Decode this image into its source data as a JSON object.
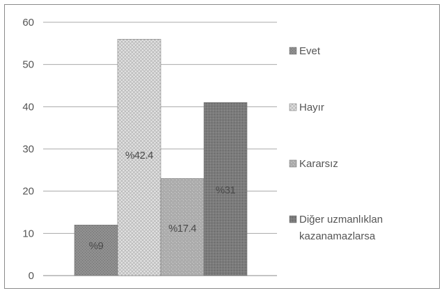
{
  "chart_data": {
    "type": "bar",
    "categories": [
      "Evet",
      "Hayır",
      "Kararsız",
      "Diğer uzmanlıklan kazanamazlarsa"
    ],
    "values": [
      12,
      56,
      23,
      41
    ],
    "data_labels": [
      "%9",
      "%42.4",
      "%17.4",
      "%31"
    ],
    "ylim": [
      0,
      60
    ],
    "yticks": [
      0,
      10,
      20,
      30,
      40,
      50,
      60
    ],
    "grid": true,
    "legend_position": "right",
    "series_colors": [
      "#8f8f8f",
      "#dcdcdc",
      "#a9a9a9",
      "#7b7b7b"
    ],
    "legend": [
      {
        "label": "Evet",
        "color": "#8f8f8f"
      },
      {
        "label": "Hayır",
        "color": "#dcdcdc"
      },
      {
        "label": "Kararsız",
        "color": "#a9a9a9"
      },
      {
        "label_lines": [
          "Diğer uzmanlıklan",
          "kazanamazlarsa"
        ],
        "color": "#7b7b7b"
      }
    ]
  }
}
